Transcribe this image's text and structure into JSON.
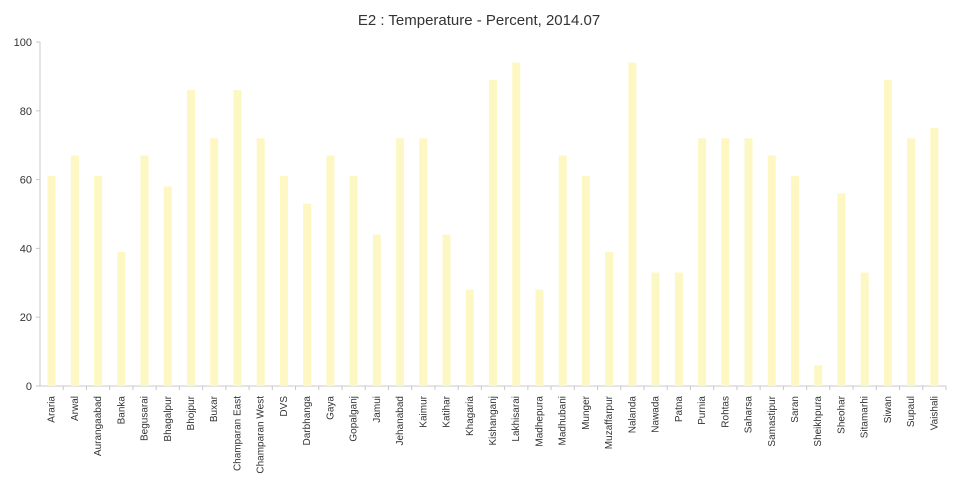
{
  "chart_data": {
    "type": "bar",
    "title": "E2 : Temperature - Percent, 2014.07",
    "xlabel": "",
    "ylabel": "",
    "ylim": [
      0,
      100
    ],
    "yticks": [
      0,
      20,
      40,
      60,
      80,
      100
    ],
    "grid": false,
    "legend": "none",
    "bar_color": "#fdf7c3",
    "categories": [
      "Araria",
      "Arwal",
      "Aurangaabad",
      "Banka",
      "Begusarai",
      "Bhagalpur",
      "Bhojpur",
      "Buxar",
      "Champaran East",
      "Champaran West",
      "DVS",
      "Darbhanga",
      "Gaya",
      "Gopalganj",
      "Jamui",
      "Jehanabad",
      "Kaimur",
      "Katihar",
      "Khagaria",
      "Kishanganj",
      "Lakhisarai",
      "Madhepura",
      "Madhubani",
      "Munger",
      "Muzaffarpur",
      "Nalanda",
      "Nawada",
      "Patna",
      "Purnia",
      "Rohtas",
      "Saharsa",
      "Samastipur",
      "Saran",
      "Sheikhpura",
      "Sheohar",
      "Sitamarhi",
      "Siwan",
      "Supaul",
      "Vaishali"
    ],
    "values": [
      61,
      67,
      61,
      39,
      67,
      58,
      86,
      72,
      86,
      72,
      61,
      53,
      67,
      61,
      44,
      72,
      72,
      44,
      28,
      89,
      94,
      28,
      67,
      61,
      39,
      94,
      33,
      33,
      72,
      72,
      72,
      67,
      61,
      6,
      56,
      33,
      89,
      72,
      75
    ]
  }
}
